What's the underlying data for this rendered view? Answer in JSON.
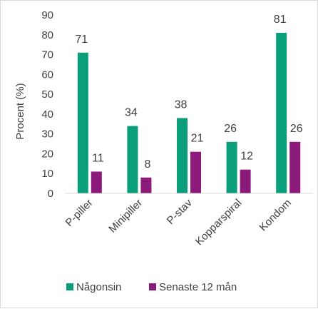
{
  "chart_data": {
    "type": "bar",
    "title": "",
    "xlabel": "",
    "ylabel": "Procent (%)",
    "ylim": [
      0,
      90
    ],
    "yticks": [
      0,
      10,
      20,
      30,
      40,
      50,
      60,
      70,
      80,
      90
    ],
    "grid": false,
    "legend_position": "bottom",
    "categories": [
      "P-piller",
      "Minipiller",
      "P-stav",
      "Kopparspiral",
      "Kondom"
    ],
    "series": [
      {
        "name": "Någonsin",
        "color": "#0b9e7a",
        "values": [
          71,
          34,
          38,
          26,
          81
        ]
      },
      {
        "name": "Senaste 12 mån",
        "color": "#8b1a7a",
        "values": [
          11,
          8,
          21,
          12,
          26
        ]
      }
    ]
  }
}
